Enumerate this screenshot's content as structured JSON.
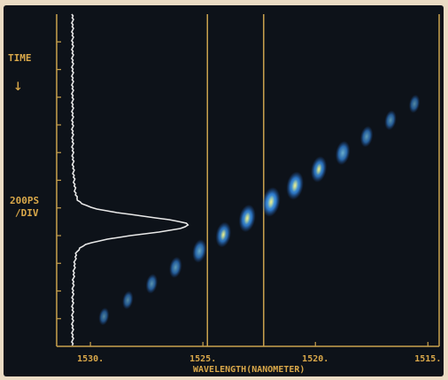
{
  "chart_data": {
    "type": "heatmap",
    "title": "",
    "time_label": "TIME",
    "time_arrow": "↓",
    "time_scale_line1": "200PS",
    "time_scale_line2": "/DIV",
    "xlabel": "WAVELENGTH(NANOMETER)",
    "x_ticks": [
      "1530.",
      "1525.",
      "1520.",
      "1515."
    ],
    "x_tick_values": [
      1530,
      1525,
      1520,
      1515
    ],
    "xlim": [
      1531.5,
      1514.5
    ],
    "x_axis_reversed": true,
    "time_divisions": 12,
    "marker_lines_nm": [
      1524.8,
      1522.3
    ],
    "pulse_trace": {
      "description_label": "",
      "peak_position": 0.635,
      "peak_height": 0.85
    },
    "spectrogram": {
      "num_lobes": 14,
      "start": {
        "wavelength_nm": 1529.4,
        "time_frac": 0.91
      },
      "end": {
        "wavelength_nm": 1515.6,
        "time_frac": 0.27
      },
      "intensity_profile": [
        0.15,
        0.2,
        0.3,
        0.4,
        0.55,
        0.7,
        0.85,
        1.0,
        0.9,
        0.75,
        0.6,
        0.4,
        0.3,
        0.2
      ],
      "colormap": [
        "#1c4f9c",
        "#2f7fd4",
        "#4fb3e8",
        "#d6dc6a"
      ]
    },
    "frame_color": "#c9a24e",
    "trace_color": "#e8e8e8",
    "label_color": "#d9a84a"
  }
}
